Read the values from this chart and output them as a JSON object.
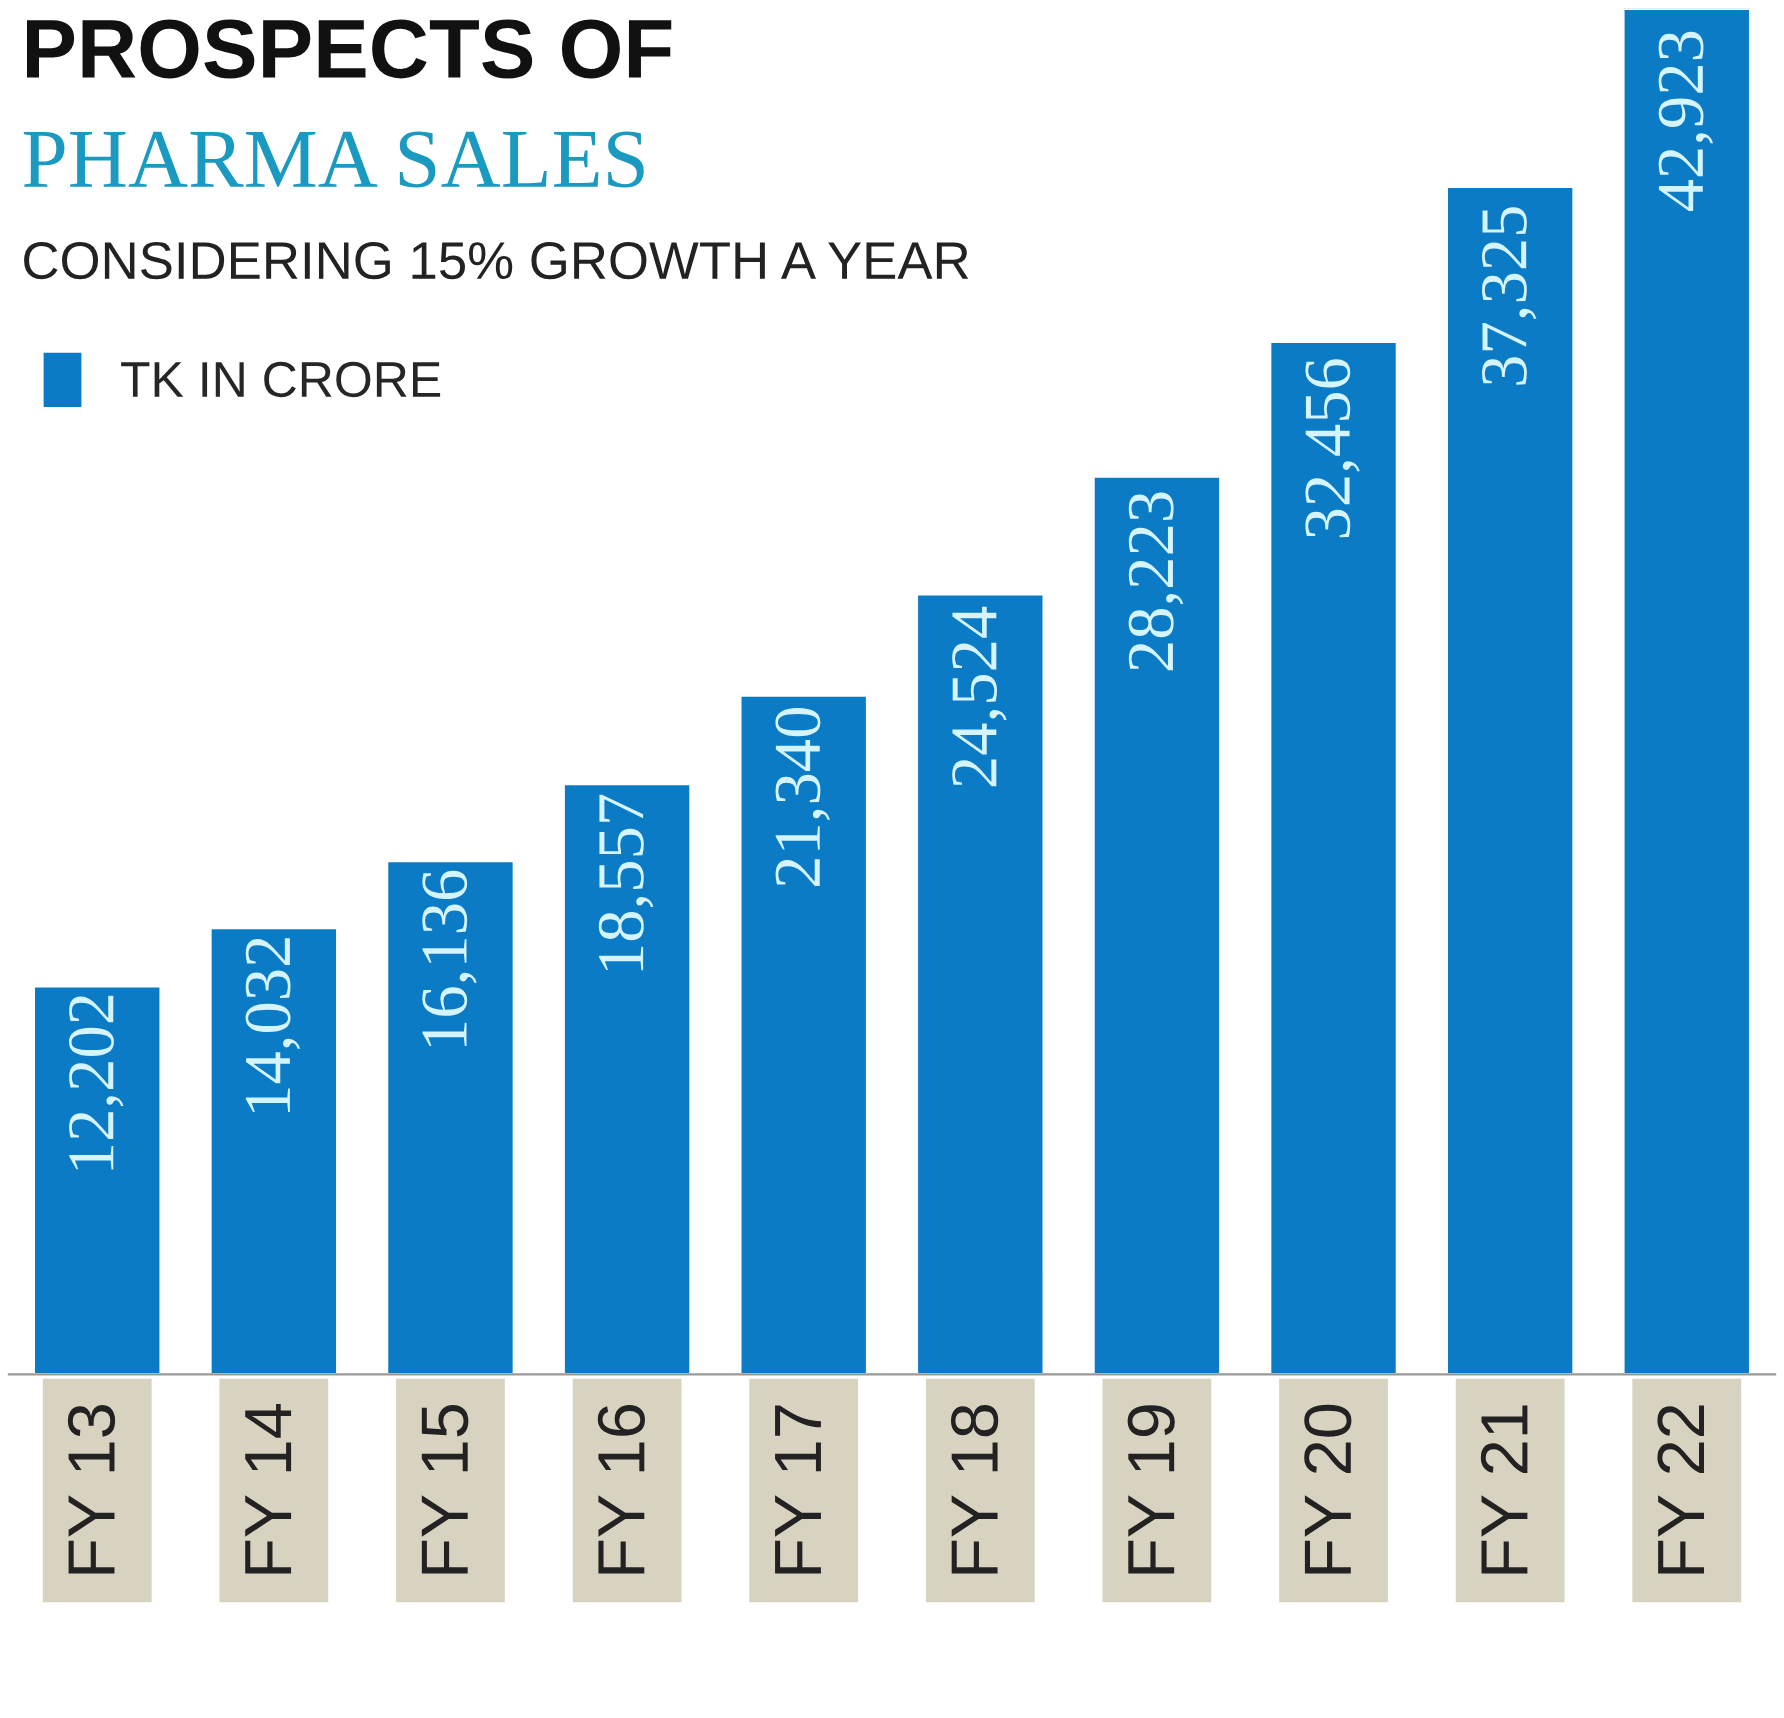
{
  "chart_data": {
    "type": "bar",
    "title": "PROSPECTS OF",
    "subtitle": "PHARMA SALES",
    "annotations": [
      "CONSIDERING 15% GROWTH A YEAR"
    ],
    "categories": [
      "FY 13",
      "FY 14",
      "FY 15",
      "FY 16",
      "FY 17",
      "FY 18",
      "FY 19",
      "FY 20",
      "FY 21",
      "FY 22"
    ],
    "series": [
      {
        "name": "TK IN CRORE",
        "color": "#0b7bc6",
        "values": [
          12202,
          14032,
          16136,
          18557,
          21340,
          24524,
          28223,
          32456,
          37325,
          42923
        ],
        "value_labels": [
          "12,202",
          "14,032",
          "16,136",
          "18,557",
          "21,340",
          "24,524",
          "28,223",
          "32,456",
          "37,325",
          "42,923"
        ]
      }
    ],
    "legend": "top left",
    "grid": false
  }
}
